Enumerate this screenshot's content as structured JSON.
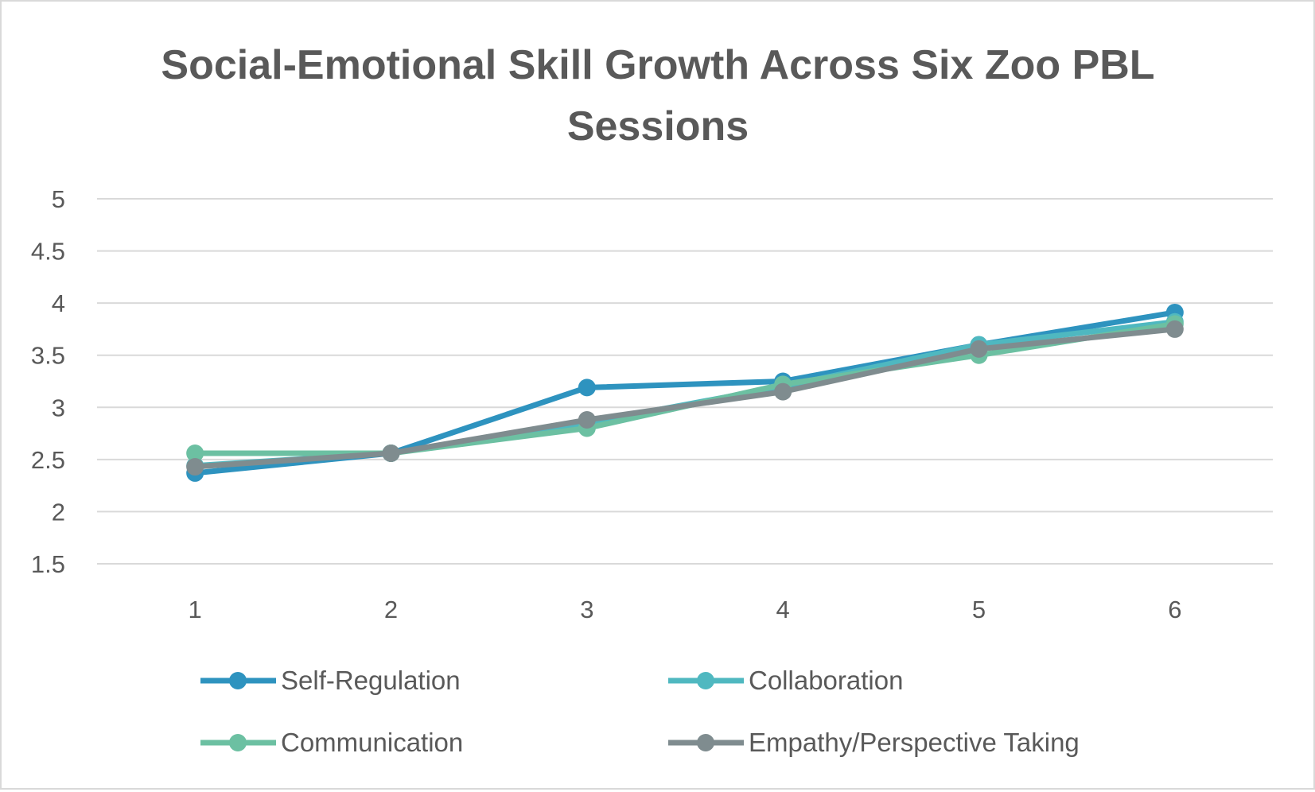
{
  "chart_data": {
    "type": "line",
    "title": "Social-Emotional Skill Growth Across Six Zoo PBL Sessions",
    "title_lines": [
      "Social-Emotional Skill Growth Across Six Zoo PBL",
      "Sessions"
    ],
    "xlabel": "",
    "ylabel": "",
    "categories": [
      "1",
      "2",
      "3",
      "4",
      "5",
      "6"
    ],
    "ylim": [
      1.5,
      5
    ],
    "yticks": [
      "1.5",
      "2",
      "2.5",
      "3",
      "3.5",
      "4",
      "4.5",
      "5"
    ],
    "grid": true,
    "legend_position": "bottom",
    "series": [
      {
        "name": "Self-Regulation",
        "color": "#2e93bf",
        "values": [
          2.37,
          2.56,
          3.19,
          3.25,
          3.6,
          3.91
        ]
      },
      {
        "name": "Collaboration",
        "color": "#4fb8c0",
        "values": [
          2.44,
          2.56,
          2.85,
          3.2,
          3.6,
          3.82
        ]
      },
      {
        "name": "Communication",
        "color": "#6cc0a2",
        "values": [
          2.56,
          2.56,
          2.8,
          3.22,
          3.5,
          3.8
        ]
      },
      {
        "name": "Empathy/Perspective Taking",
        "color": "#7f8c8f",
        "values": [
          2.43,
          2.56,
          2.88,
          3.15,
          3.56,
          3.75
        ]
      }
    ]
  }
}
